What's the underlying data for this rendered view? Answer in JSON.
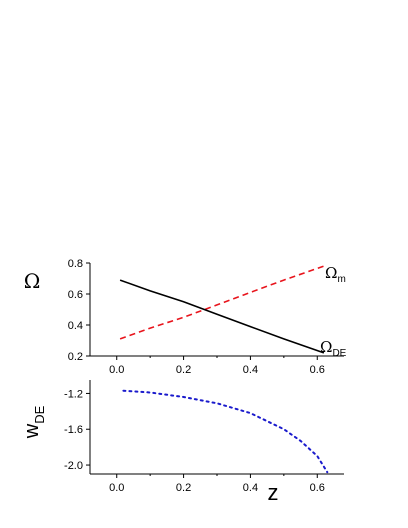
{
  "chart_data": [
    {
      "type": "line",
      "ylabel": "Ω",
      "xlim": [
        -0.08,
        0.68
      ],
      "ylim": [
        0.2,
        0.8
      ],
      "x_ticks": [
        "0.0",
        "0.2",
        "0.4",
        "0.6"
      ],
      "y_ticks": [
        "0.2",
        "0.4",
        "0.6",
        "0.8"
      ],
      "grid": false,
      "series": [
        {
          "name": "Ωm",
          "style": "dashed",
          "color": "#e8141c",
          "x": [
            0.01,
            0.1,
            0.2,
            0.3,
            0.4,
            0.5,
            0.62
          ],
          "y": [
            0.31,
            0.38,
            0.45,
            0.53,
            0.61,
            0.69,
            0.78
          ]
        },
        {
          "name": "ΩDE",
          "style": "solid",
          "color": "#000000",
          "x": [
            0.01,
            0.1,
            0.2,
            0.3,
            0.4,
            0.5,
            0.62
          ],
          "y": [
            0.69,
            0.62,
            0.55,
            0.47,
            0.39,
            0.31,
            0.22
          ]
        }
      ],
      "annotations": [
        {
          "text": "Ω",
          "sub": "m",
          "near": "end of dashed line"
        },
        {
          "text": "Ω",
          "sub": "DE",
          "near": "end of solid line"
        }
      ]
    },
    {
      "type": "line",
      "ylabel": "w",
      "ylabel_sub": "DE",
      "xlabel": "z",
      "xlim": [
        -0.08,
        0.68
      ],
      "ylim": [
        -2.1,
        -1.05
      ],
      "x_ticks": [
        "0.0",
        "0.2",
        "0.4",
        "0.6"
      ],
      "y_ticks": [
        "-1.2",
        "-1.6",
        "-2.0"
      ],
      "grid": false,
      "series": [
        {
          "style": "dotted",
          "color": "#1a1acc",
          "x": [
            0.02,
            0.1,
            0.2,
            0.3,
            0.4,
            0.5,
            0.55,
            0.6,
            0.63
          ],
          "y": [
            -1.17,
            -1.19,
            -1.24,
            -1.31,
            -1.42,
            -1.6,
            -1.73,
            -1.9,
            -2.08
          ]
        }
      ]
    }
  ]
}
